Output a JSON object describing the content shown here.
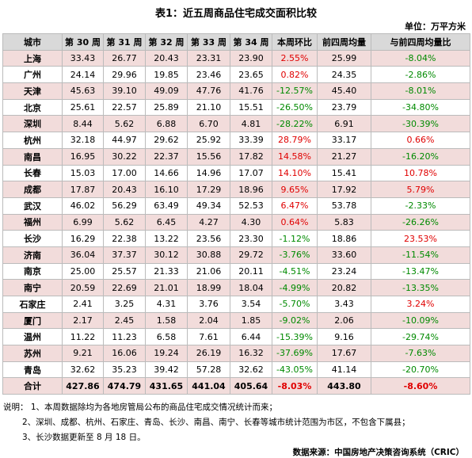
{
  "title": "表1：近五周商品住宅成交面积比较",
  "unit": "单位：万平方米",
  "table": {
    "header": [
      "城市",
      "第 30 周",
      "第 31 周",
      "第 32 周",
      "第 33 周",
      "第 34 周",
      "本周环比",
      "前四周均量",
      "与前四周均量比"
    ],
    "rows": [
      [
        "上海",
        "33.43",
        "26.77",
        "20.43",
        "23.31",
        "23.90",
        "2.55%",
        "25.99",
        "-8.04%"
      ],
      [
        "广州",
        "24.14",
        "29.96",
        "19.85",
        "23.46",
        "23.65",
        "0.82%",
        "24.35",
        "-2.86%"
      ],
      [
        "天津",
        "45.63",
        "39.10",
        "49.09",
        "47.76",
        "41.76",
        "-12.57%",
        "45.40",
        "-8.01%"
      ],
      [
        "北京",
        "25.61",
        "22.57",
        "25.89",
        "21.10",
        "15.51",
        "-26.50%",
        "23.79",
        "-34.80%"
      ],
      [
        "深圳",
        "8.44",
        "5.62",
        "6.88",
        "6.70",
        "4.81",
        "-28.22%",
        "6.91",
        "-30.39%"
      ],
      [
        "杭州",
        "32.18",
        "44.97",
        "29.62",
        "25.92",
        "33.39",
        "28.79%",
        "33.17",
        "0.66%"
      ],
      [
        "南昌",
        "16.95",
        "30.22",
        "22.37",
        "15.56",
        "17.82",
        "14.58%",
        "21.27",
        "-16.20%"
      ],
      [
        "长春",
        "15.03",
        "17.00",
        "14.66",
        "14.96",
        "17.07",
        "14.10%",
        "15.41",
        "10.78%"
      ],
      [
        "成都",
        "17.87",
        "20.43",
        "16.10",
        "17.29",
        "18.96",
        "9.65%",
        "17.92",
        "5.79%"
      ],
      [
        "武汉",
        "46.02",
        "56.29",
        "63.49",
        "49.34",
        "52.53",
        "6.47%",
        "53.78",
        "-2.33%"
      ],
      [
        "福州",
        "6.99",
        "5.62",
        "6.45",
        "4.27",
        "4.30",
        "0.64%",
        "5.83",
        "-26.26%"
      ],
      [
        "长沙",
        "16.29",
        "22.38",
        "13.22",
        "23.56",
        "23.30",
        "-1.12%",
        "18.86",
        "23.53%"
      ],
      [
        "济南",
        "36.04",
        "37.37",
        "30.12",
        "30.88",
        "29.72",
        "-3.76%",
        "33.60",
        "-11.54%"
      ],
      [
        "南京",
        "25.00",
        "25.57",
        "21.33",
        "21.06",
        "20.11",
        "-4.51%",
        "23.24",
        "-13.47%"
      ],
      [
        "南宁",
        "20.59",
        "22.69",
        "21.01",
        "18.99",
        "18.04",
        "-4.99%",
        "20.82",
        "-13.35%"
      ],
      [
        "石家庄",
        "2.41",
        "3.25",
        "4.31",
        "3.76",
        "3.54",
        "-5.70%",
        "3.43",
        "3.24%"
      ],
      [
        "厦门",
        "2.17",
        "2.45",
        "1.58",
        "2.04",
        "1.85",
        "-9.02%",
        "2.06",
        "-10.09%"
      ],
      [
        "温州",
        "11.22",
        "11.23",
        "6.58",
        "7.61",
        "6.44",
        "-15.39%",
        "9.16",
        "-29.74%"
      ],
      [
        "苏州",
        "9.21",
        "16.06",
        "19.24",
        "26.19",
        "16.32",
        "-37.69%",
        "17.67",
        "-7.63%"
      ],
      [
        "青岛",
        "32.62",
        "35.23",
        "39.42",
        "57.28",
        "32.62",
        "-43.05%",
        "41.14",
        "-20.70%"
      ]
    ],
    "total": [
      "合计",
      "427.86",
      "474.79",
      "431.65",
      "441.04",
      "405.64",
      "-8.03%",
      "443.80",
      "-8.60%"
    ]
  },
  "notes": {
    "label": "说明：",
    "items": [
      "1、本周数据除均为各地房管局公布的商品住宅成交情况统计而来；",
      "2、深圳、成都、杭州、石家庄、青岛、长沙、南昌、南宁、长春等城市统计范围为市区，不包含下属县；",
      "3、长沙数据更新至 8 月 18 日。"
    ]
  },
  "source": "数据来源：中国房地产决策咨询系统（CRIC）"
}
